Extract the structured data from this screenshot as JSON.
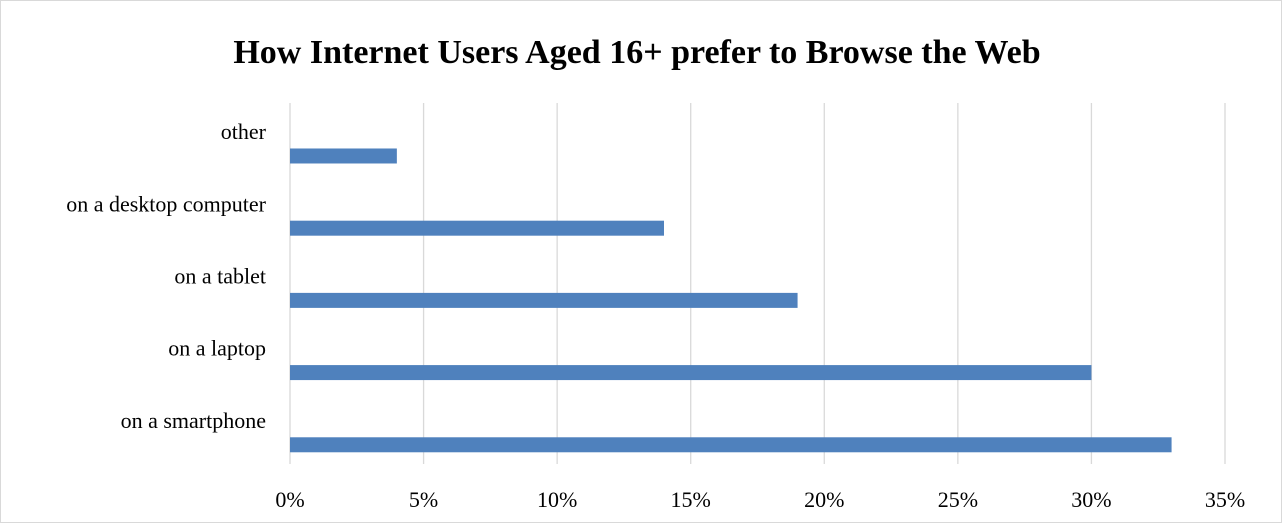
{
  "chart_data": {
    "type": "bar",
    "orientation": "horizontal",
    "title": "How Internet Users Aged 16+ prefer to Browse the Web",
    "xlabel": "",
    "ylabel": "",
    "categories": [
      "other",
      "on a desktop computer",
      "on a tablet",
      "on a laptop",
      "on a smartphone"
    ],
    "values": [
      4,
      14,
      19,
      30,
      33
    ],
    "value_unit": "%",
    "xlim": [
      0,
      35
    ],
    "x_ticks": [
      0,
      5,
      10,
      15,
      20,
      25,
      30,
      35
    ],
    "x_tick_labels": [
      "0%",
      "5%",
      "10%",
      "15%",
      "20%",
      "25%",
      "30%",
      "35%"
    ],
    "grid": "vertical",
    "legend": "none",
    "bar_color": "#4f81bd",
    "grid_color": "#d9d9d9"
  }
}
